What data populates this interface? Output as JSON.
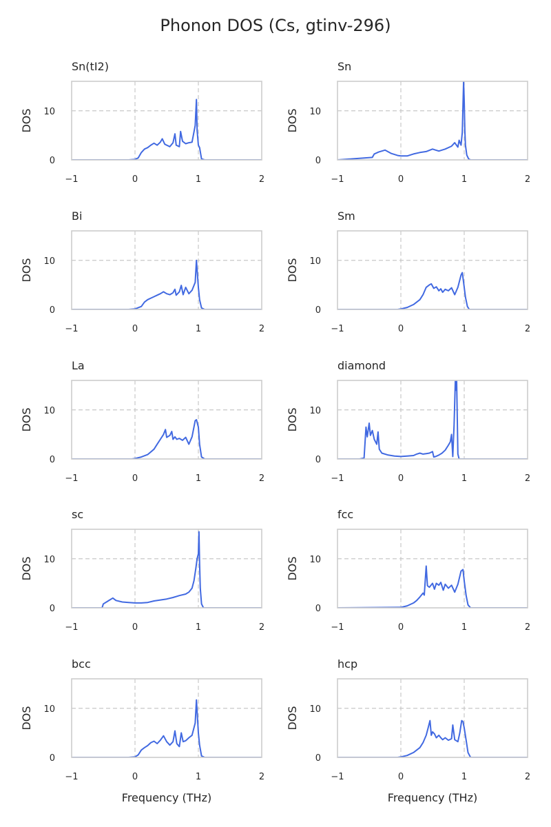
{
  "figure": {
    "title": "Phonon DOS (Cs, gtinv-296)"
  },
  "chart_data": [
    {
      "type": "line",
      "title": "Sn(tI2)",
      "xlabel": "",
      "ylabel": "DOS",
      "xlim": [
        -1,
        2
      ],
      "ylim": [
        0,
        16
      ],
      "xticks": [
        -1,
        0,
        1,
        2
      ],
      "xtick_labels": [
        "−1",
        "0",
        "1",
        "2"
      ],
      "yticks": [
        0,
        10
      ],
      "ytick_labels": [
        "0",
        "10"
      ],
      "grid": {
        "h": [
          10
        ],
        "v": [
          0,
          1
        ]
      },
      "series": [
        {
          "x": [
            -0.1,
            0.0,
            0.05,
            0.1,
            0.15,
            0.2,
            0.25,
            0.3,
            0.35,
            0.4,
            0.43,
            0.47,
            0.5,
            0.55,
            0.6,
            0.63,
            0.65,
            0.7,
            0.72,
            0.75,
            0.8,
            0.85,
            0.9,
            0.95,
            0.97,
            0.98,
            1.0,
            1.02,
            1.05,
            1.1
          ],
          "y": [
            0,
            0.1,
            0.4,
            1.5,
            2.2,
            2.5,
            3.0,
            3.4,
            3.0,
            3.6,
            4.3,
            3.2,
            3.0,
            2.7,
            3.5,
            5.3,
            3.0,
            2.7,
            5.8,
            3.8,
            3.3,
            3.5,
            3.6,
            7.0,
            12.3,
            6.0,
            3.0,
            2.5,
            0.2,
            0
          ]
        }
      ]
    },
    {
      "type": "line",
      "title": "Sn",
      "xlabel": "",
      "ylabel": "DOS",
      "xlim": [
        -1,
        2
      ],
      "ylim": [
        0,
        16
      ],
      "xticks": [
        -1,
        0,
        1,
        2
      ],
      "xtick_labels": [
        "−1",
        "0",
        "1",
        "2"
      ],
      "yticks": [
        0,
        10
      ],
      "ytick_labels": [
        "0",
        "10"
      ],
      "grid": {
        "h": [
          10
        ],
        "v": [
          0,
          1
        ]
      },
      "series": [
        {
          "x": [
            -0.45,
            -0.42,
            -0.35,
            -0.25,
            -0.15,
            -0.05,
            0.0,
            0.1,
            0.2,
            0.3,
            0.4,
            0.5,
            0.55,
            0.6,
            0.7,
            0.8,
            0.85,
            0.9,
            0.92,
            0.95,
            0.97,
            0.99,
            1.0,
            1.01,
            1.02,
            1.04,
            1.07,
            1.1
          ],
          "y": [
            0.5,
            1.2,
            1.6,
            2.0,
            1.3,
            0.9,
            0.8,
            0.8,
            1.2,
            1.5,
            1.7,
            2.2,
            2.0,
            1.8,
            2.2,
            2.8,
            3.5,
            2.6,
            4.0,
            3.0,
            5.6,
            16,
            12,
            6,
            3,
            1.0,
            0.2,
            0
          ]
        }
      ]
    },
    {
      "type": "line",
      "title": "Bi",
      "xlabel": "",
      "ylabel": "DOS",
      "xlim": [
        -1,
        2
      ],
      "ylim": [
        0,
        16
      ],
      "xticks": [
        -1,
        0,
        1,
        2
      ],
      "xtick_labels": [
        "−1",
        "0",
        "1",
        "2"
      ],
      "yticks": [
        0,
        10
      ],
      "ytick_labels": [
        "0",
        "10"
      ],
      "grid": {
        "h": [
          10
        ],
        "v": [
          0,
          1
        ]
      },
      "series": [
        {
          "x": [
            -0.1,
            0.0,
            0.1,
            0.15,
            0.2,
            0.25,
            0.3,
            0.35,
            0.4,
            0.45,
            0.5,
            0.55,
            0.6,
            0.63,
            0.65,
            0.7,
            0.73,
            0.76,
            0.8,
            0.85,
            0.9,
            0.95,
            0.97,
            1.0,
            1.02,
            1.05,
            1.1
          ],
          "y": [
            0,
            0.1,
            0.6,
            1.5,
            2.0,
            2.3,
            2.6,
            2.9,
            3.2,
            3.6,
            3.2,
            3.0,
            3.4,
            4.1,
            2.9,
            3.6,
            4.9,
            3.0,
            4.5,
            3.2,
            3.9,
            5.5,
            10.0,
            4.5,
            2.0,
            0.3,
            0
          ]
        }
      ]
    },
    {
      "type": "line",
      "title": "Sm",
      "xlabel": "",
      "ylabel": "DOS",
      "xlim": [
        -1,
        2
      ],
      "ylim": [
        0,
        16
      ],
      "xticks": [
        -1,
        0,
        1,
        2
      ],
      "xtick_labels": [
        "−1",
        "0",
        "1",
        "2"
      ],
      "yticks": [
        0,
        10
      ],
      "ytick_labels": [
        "0",
        "10"
      ],
      "grid": {
        "h": [
          10
        ],
        "v": [
          0,
          1
        ]
      },
      "series": [
        {
          "x": [
            -0.05,
            0.0,
            0.1,
            0.2,
            0.3,
            0.35,
            0.4,
            0.45,
            0.48,
            0.52,
            0.56,
            0.6,
            0.63,
            0.66,
            0.7,
            0.75,
            0.8,
            0.85,
            0.9,
            0.95,
            0.97,
            0.99,
            1.02,
            1.05,
            1.08
          ],
          "y": [
            0,
            0.1,
            0.4,
            1.0,
            2.0,
            3.0,
            4.5,
            5.0,
            5.2,
            4.3,
            4.6,
            3.8,
            4.2,
            3.5,
            4.1,
            3.8,
            4.4,
            3.0,
            4.5,
            7.0,
            7.5,
            5.5,
            2.5,
            0.6,
            0
          ]
        }
      ]
    },
    {
      "type": "line",
      "title": "La",
      "xlabel": "",
      "ylabel": "DOS",
      "xlim": [
        -1,
        2
      ],
      "ylim": [
        0,
        16
      ],
      "xticks": [
        -1,
        0,
        1,
        2
      ],
      "xtick_labels": [
        "−1",
        "0",
        "1",
        "2"
      ],
      "yticks": [
        0,
        10
      ],
      "ytick_labels": [
        "0",
        "10"
      ],
      "grid": {
        "h": [
          10
        ],
        "v": [
          0,
          1
        ]
      },
      "series": [
        {
          "x": [
            -0.05,
            0.0,
            0.1,
            0.2,
            0.3,
            0.35,
            0.4,
            0.45,
            0.48,
            0.5,
            0.55,
            0.58,
            0.6,
            0.63,
            0.66,
            0.7,
            0.75,
            0.8,
            0.85,
            0.9,
            0.95,
            0.97,
            1.0,
            1.02,
            1.05,
            1.1
          ],
          "y": [
            0,
            0.1,
            0.4,
            0.9,
            2.0,
            3.0,
            4.0,
            5.0,
            6.0,
            4.4,
            4.8,
            5.6,
            4.0,
            4.5,
            4.0,
            4.2,
            3.8,
            4.4,
            3.0,
            4.5,
            7.8,
            8.0,
            6.5,
            3.0,
            0.4,
            0
          ]
        }
      ]
    },
    {
      "type": "line",
      "title": "diamond",
      "xlabel": "",
      "ylabel": "DOS",
      "xlim": [
        -1,
        2
      ],
      "ylim": [
        0,
        16
      ],
      "xticks": [
        -1,
        0,
        1,
        2
      ],
      "xtick_labels": [
        "−1",
        "0",
        "1",
        "2"
      ],
      "yticks": [
        0,
        10
      ],
      "ytick_labels": [
        "0",
        "10"
      ],
      "grid": {
        "h": [
          10
        ],
        "v": [
          0,
          1
        ]
      },
      "series": [
        {
          "x": [
            -0.65,
            -0.58,
            -0.55,
            -0.53,
            -0.5,
            -0.48,
            -0.45,
            -0.42,
            -0.38,
            -0.36,
            -0.34,
            -0.3,
            -0.2,
            -0.1,
            0.0,
            0.1,
            0.2,
            0.25,
            0.3,
            0.35,
            0.4,
            0.45,
            0.5,
            0.52,
            0.55,
            0.6,
            0.65,
            0.7,
            0.75,
            0.78,
            0.8,
            0.82,
            0.84,
            0.86,
            0.87,
            0.88,
            0.9,
            0.92
          ],
          "y": [
            0,
            0.2,
            6.5,
            4.5,
            7.3,
            4.8,
            5.8,
            4.0,
            3.0,
            5.5,
            2.0,
            1.2,
            0.8,
            0.6,
            0.5,
            0.6,
            0.7,
            1.0,
            1.2,
            1.0,
            1.1,
            1.2,
            1.5,
            0.4,
            0.5,
            0.8,
            1.2,
            1.8,
            2.8,
            3.5,
            5.0,
            0.5,
            7.0,
            16,
            14,
            16,
            1.0,
            0
          ]
        }
      ]
    },
    {
      "type": "line",
      "title": "sc",
      "xlabel": "",
      "ylabel": "DOS",
      "xlim": [
        -1,
        2
      ],
      "ylim": [
        0,
        16
      ],
      "xticks": [
        -1,
        0,
        1,
        2
      ],
      "xtick_labels": [
        "−1",
        "0",
        "1",
        "2"
      ],
      "yticks": [
        0,
        10
      ],
      "ytick_labels": [
        "0",
        "10"
      ],
      "grid": {
        "h": [
          10
        ],
        "v": [
          0,
          1
        ]
      },
      "series": [
        {
          "x": [
            -0.52,
            -0.5,
            -0.45,
            -0.4,
            -0.35,
            -0.3,
            -0.2,
            -0.1,
            0.0,
            0.1,
            0.2,
            0.3,
            0.4,
            0.5,
            0.6,
            0.7,
            0.8,
            0.85,
            0.9,
            0.93,
            0.96,
            0.98,
            1.0,
            1.01,
            1.02,
            1.03,
            1.05,
            1.08
          ],
          "y": [
            0,
            0.8,
            1.2,
            1.6,
            2.0,
            1.5,
            1.2,
            1.1,
            1.0,
            1.0,
            1.1,
            1.4,
            1.6,
            1.8,
            2.1,
            2.5,
            2.8,
            3.2,
            4.0,
            5.5,
            8.0,
            10,
            11,
            15.5,
            9,
            4,
            0.8,
            0
          ]
        }
      ]
    },
    {
      "type": "line",
      "title": "fcc",
      "xlabel": "",
      "ylabel": "DOS",
      "xlim": [
        -1,
        2
      ],
      "ylim": [
        0,
        16
      ],
      "xticks": [
        -1,
        0,
        1,
        2
      ],
      "xtick_labels": [
        "−1",
        "0",
        "1",
        "2"
      ],
      "yticks": [
        0,
        10
      ],
      "ytick_labels": [
        "0",
        "10"
      ],
      "grid": {
        "h": [
          10
        ],
        "v": [
          0,
          1
        ]
      },
      "series": [
        {
          "x": [
            0.0,
            0.1,
            0.2,
            0.25,
            0.3,
            0.35,
            0.37,
            0.4,
            0.42,
            0.45,
            0.5,
            0.53,
            0.56,
            0.6,
            0.63,
            0.67,
            0.7,
            0.75,
            0.8,
            0.85,
            0.9,
            0.95,
            0.98,
            1.0,
            1.03,
            1.06,
            1.1
          ],
          "y": [
            0.1,
            0.4,
            1.0,
            1.5,
            2.2,
            3.0,
            2.6,
            8.5,
            4.5,
            4.2,
            5.0,
            3.8,
            5.0,
            4.6,
            5.2,
            3.6,
            4.8,
            4.0,
            4.6,
            3.2,
            4.8,
            7.5,
            7.8,
            5.5,
            2.5,
            0.6,
            0
          ]
        }
      ]
    },
    {
      "type": "line",
      "title": "bcc",
      "xlabel": "Frequency (THz)",
      "ylabel": "DOS",
      "xlim": [
        -1,
        2
      ],
      "ylim": [
        0,
        16
      ],
      "xticks": [
        -1,
        0,
        1,
        2
      ],
      "xtick_labels": [
        "−1",
        "0",
        "1",
        "2"
      ],
      "yticks": [
        0,
        10
      ],
      "ytick_labels": [
        "0",
        "10"
      ],
      "grid": {
        "h": [
          10
        ],
        "v": [
          0,
          1
        ]
      },
      "series": [
        {
          "x": [
            -0.1,
            0.0,
            0.05,
            0.1,
            0.15,
            0.2,
            0.25,
            0.3,
            0.35,
            0.4,
            0.45,
            0.5,
            0.55,
            0.6,
            0.63,
            0.66,
            0.7,
            0.73,
            0.76,
            0.8,
            0.85,
            0.9,
            0.95,
            0.97,
            1.0,
            1.02,
            1.05,
            1.1
          ],
          "y": [
            0,
            0.1,
            0.5,
            1.5,
            2.0,
            2.4,
            3.0,
            3.3,
            2.8,
            3.5,
            4.4,
            3.2,
            2.5,
            3.2,
            5.4,
            2.8,
            2.2,
            5.0,
            3.2,
            3.4,
            4.0,
            4.5,
            7.0,
            11.7,
            5.0,
            2.5,
            0.3,
            0
          ]
        }
      ]
    },
    {
      "type": "line",
      "title": "hcp",
      "xlabel": "Frequency (THz)",
      "ylabel": "DOS",
      "xlim": [
        -1,
        2
      ],
      "ylim": [
        0,
        16
      ],
      "xticks": [
        -1,
        0,
        1,
        2
      ],
      "xtick_labels": [
        "−1",
        "0",
        "1",
        "2"
      ],
      "yticks": [
        0,
        10
      ],
      "ytick_labels": [
        "0",
        "10"
      ],
      "grid": {
        "h": [
          10
        ],
        "v": [
          0,
          1
        ]
      },
      "series": [
        {
          "x": [
            -0.05,
            0.0,
            0.1,
            0.2,
            0.3,
            0.35,
            0.4,
            0.43,
            0.46,
            0.48,
            0.5,
            0.53,
            0.56,
            0.6,
            0.63,
            0.66,
            0.7,
            0.75,
            0.8,
            0.82,
            0.85,
            0.9,
            0.93,
            0.96,
            0.98,
            1.0,
            1.03,
            1.06,
            1.1
          ],
          "y": [
            0,
            0.1,
            0.4,
            1.0,
            2.0,
            3.0,
            4.5,
            6.0,
            7.5,
            4.5,
            5.2,
            4.8,
            4.0,
            4.5,
            4.0,
            3.6,
            4.0,
            3.5,
            3.8,
            6.6,
            3.6,
            3.2,
            5.0,
            7.5,
            7.3,
            6.0,
            3.5,
            1.0,
            0
          ]
        }
      ]
    }
  ]
}
